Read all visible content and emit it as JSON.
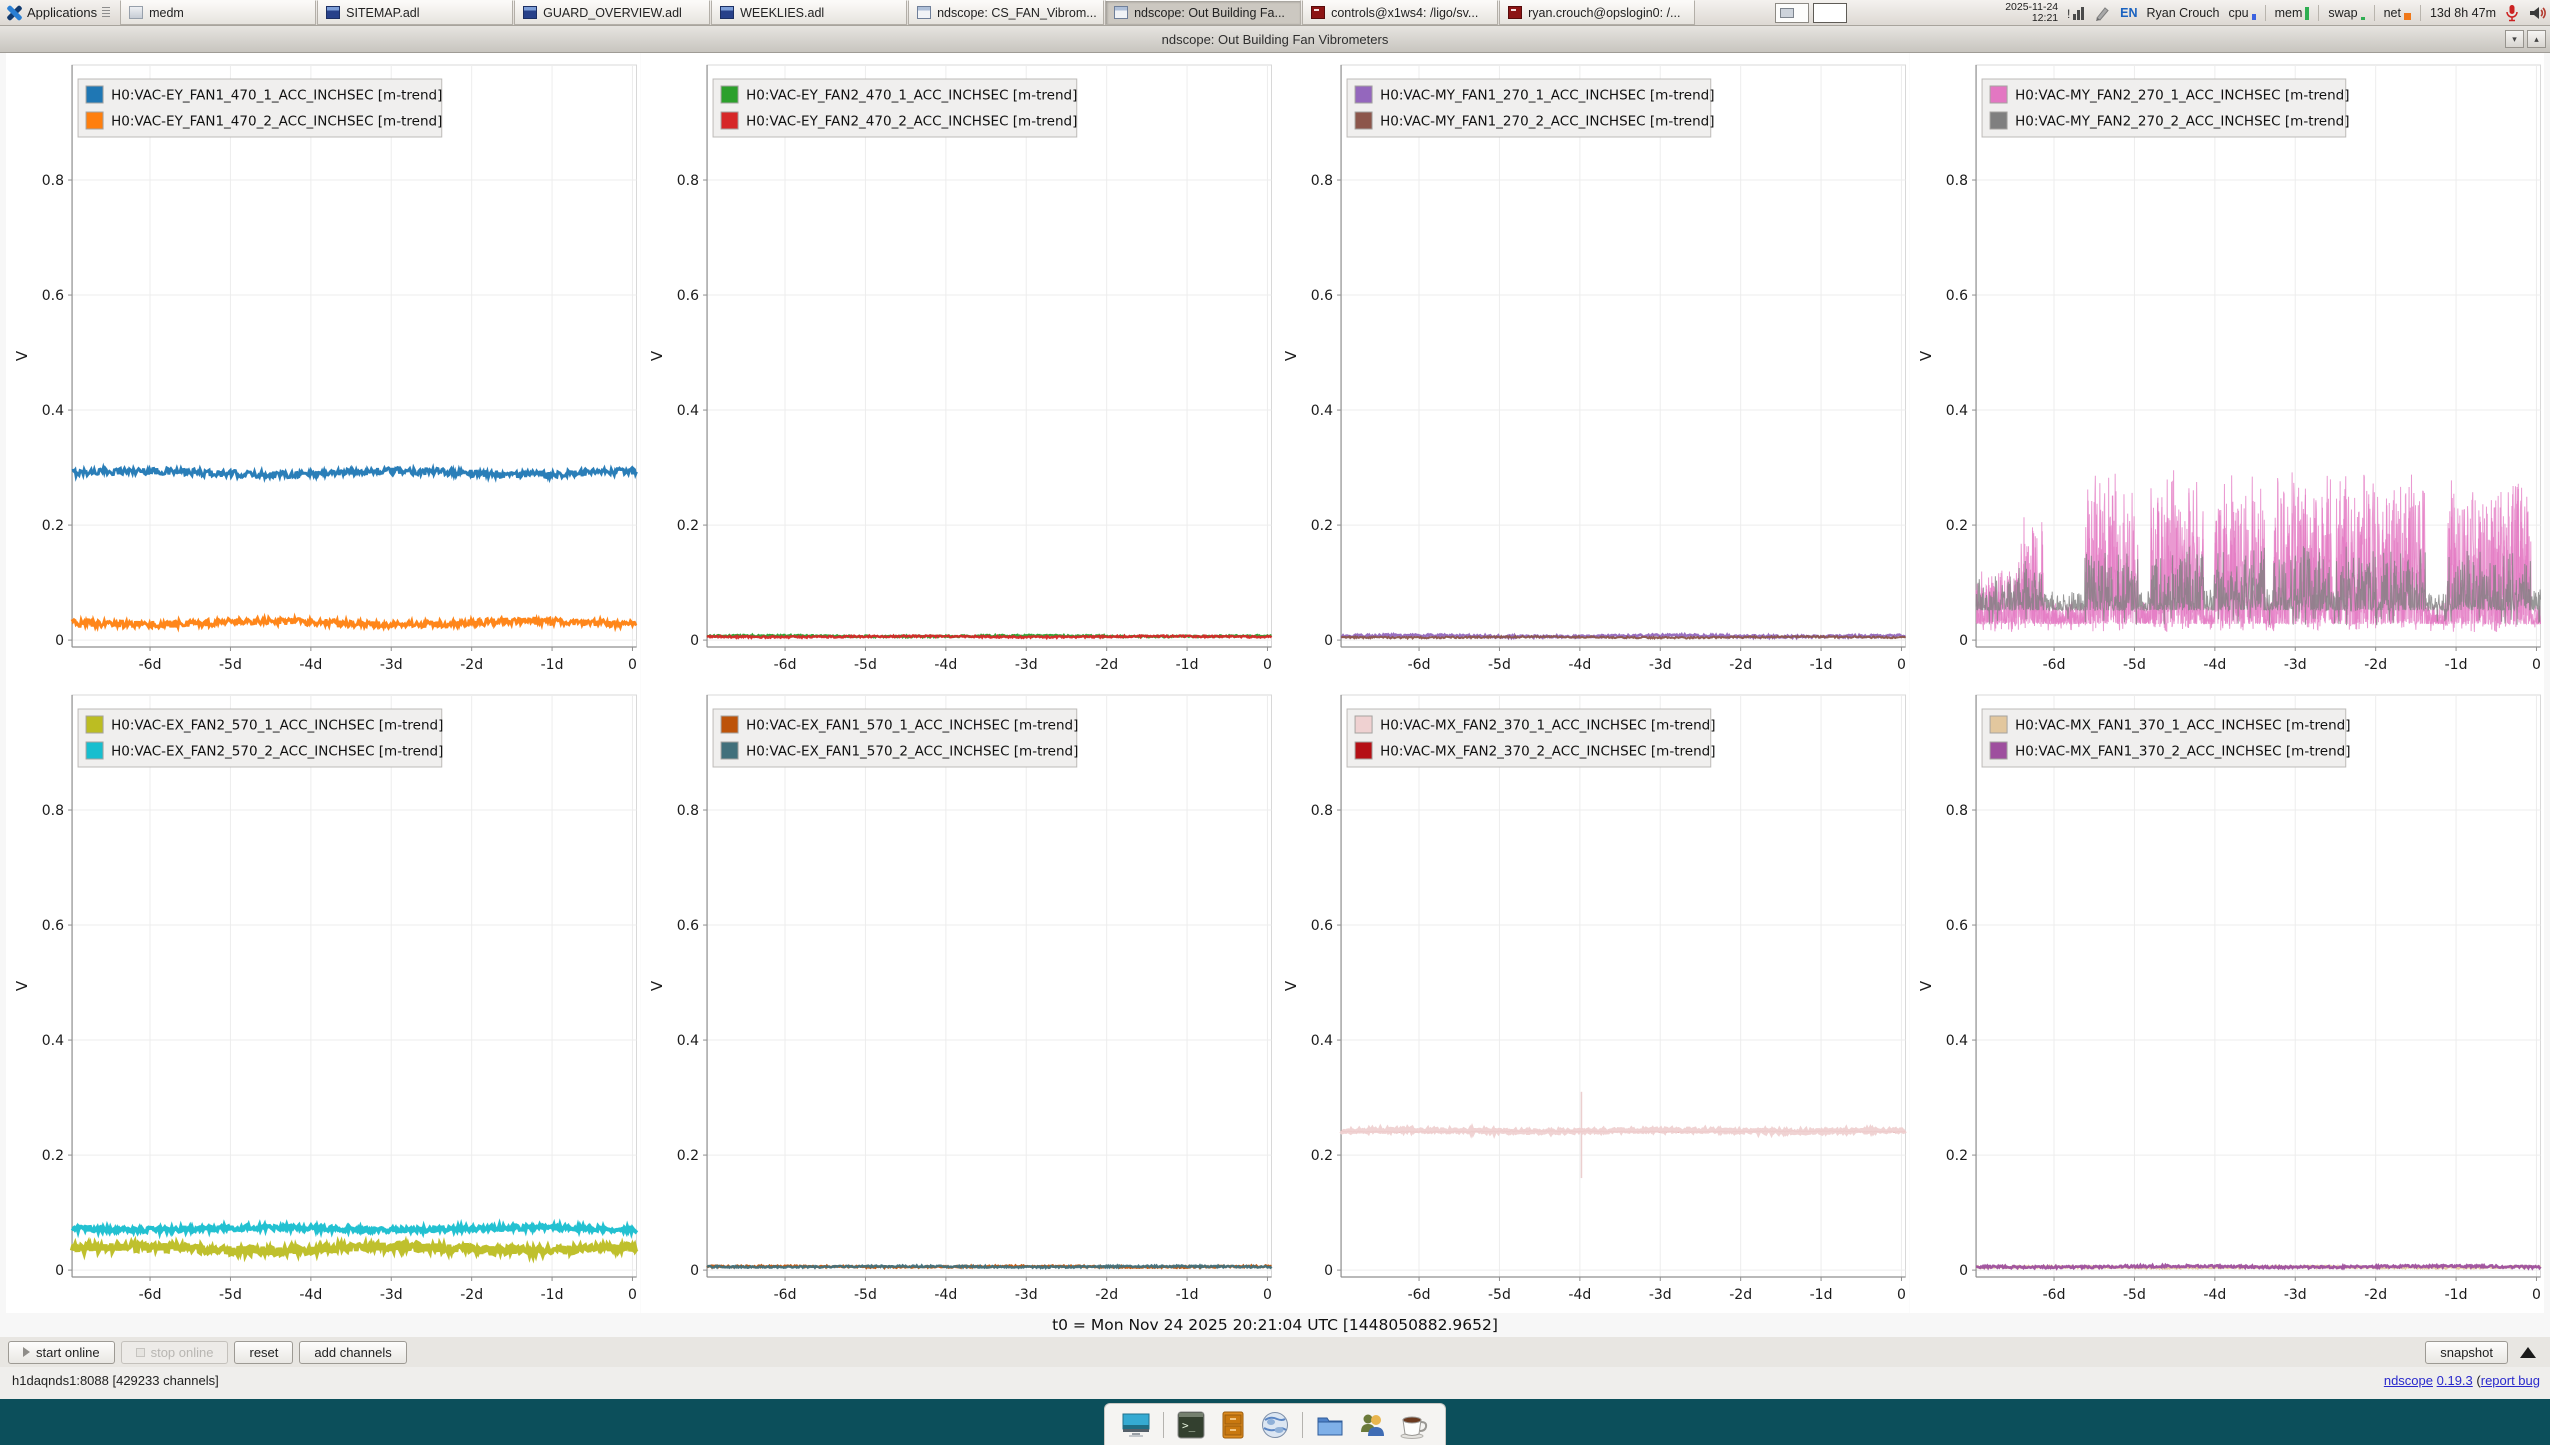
{
  "taskbar": {
    "applications_label": "Applications",
    "windows": [
      {
        "label": "medm",
        "icon": "medm",
        "active": false
      },
      {
        "label": "SITEMAP.adl",
        "icon": "adl",
        "active": false
      },
      {
        "label": "GUARD_OVERVIEW.adl",
        "icon": "adl",
        "active": false
      },
      {
        "label": "WEEKLIES.adl",
        "icon": "adl",
        "active": false
      },
      {
        "label": "ndscope: CS_FAN_Vibrom...",
        "icon": "ndscope",
        "active": false
      },
      {
        "label": "ndscope: Out Building Fa...",
        "icon": "ndscope",
        "active": true
      },
      {
        "label": "controls@x1ws4: /ligo/sv...",
        "icon": "terminal",
        "active": false
      },
      {
        "label": "ryan.crouch@opslogin0: /...",
        "icon": "terminal",
        "active": false
      }
    ],
    "tray": {
      "date": "2025-11-24",
      "time": "12:21",
      "lang": "EN",
      "user": "Ryan Crouch",
      "cpu_label": "cpu",
      "mem_label": "mem",
      "swap_label": "swap",
      "net_label": "net",
      "uptime": "13d 8h 47m"
    }
  },
  "window": {
    "title": "ndscope: Out Building Fan Vibrometers"
  },
  "footer": {
    "t0_label": "t0 = Mon Nov 24 2025 20:21:04 UTC [1448050882.9652]",
    "buttons": {
      "start_online": "start online",
      "stop_online": "stop online",
      "reset": "reset",
      "add_channels": "add channels",
      "snapshot": "snapshot"
    },
    "status": "h1daqnds1:8088  [429233 channels]",
    "about": {
      "app": "ndscope",
      "version": "0.19.3",
      "pre": " (",
      "report": "report bug"
    }
  },
  "colors": {
    "cpu_bar": "#3b62e0",
    "mem_bar": "#2fae52",
    "swap_bar": "#2fae52",
    "net_block": "#f07818",
    "mic": "#cc2222",
    "dock_background": "#0c4f5b"
  },
  "chart_data": [
    {
      "id": "EY_FAN1_470",
      "type": "line",
      "ylabel": "V",
      "xlim": [
        -6.97,
        0.05
      ],
      "ylim": [
        -0.012,
        1.0
      ],
      "yticks": [
        0,
        0.2,
        0.4,
        0.6,
        0.8
      ],
      "xticks": [
        {
          "v": -6,
          "label": "-6d"
        },
        {
          "v": -5,
          "label": "-5d"
        },
        {
          "v": -4,
          "label": "-4d"
        },
        {
          "v": -3,
          "label": "-3d"
        },
        {
          "v": -2,
          "label": "-2d"
        },
        {
          "v": -1,
          "label": "-1d"
        },
        {
          "v": 0,
          "label": "0"
        }
      ],
      "series": [
        {
          "name": "H0:VAC-EY_FAN1_470_1_ACC_INCHSEC [m-trend]",
          "color": "#1f77b4",
          "pattern": "flat",
          "level": 0.291,
          "noise": 0.006,
          "width": 3
        },
        {
          "name": "H0:VAC-EY_FAN1_470_2_ACC_INCHSEC [m-trend]",
          "color": "#ff7f0e",
          "pattern": "flat",
          "level": 0.03,
          "noise": 0.006,
          "width": 3
        }
      ]
    },
    {
      "id": "EY_FAN2_470",
      "type": "line",
      "ylabel": "V",
      "xlim": [
        -6.97,
        0.05
      ],
      "ylim": [
        -0.012,
        1.0
      ],
      "yticks": [
        0,
        0.2,
        0.4,
        0.6,
        0.8
      ],
      "xticks": [
        {
          "v": -6,
          "label": "-6d"
        },
        {
          "v": -5,
          "label": "-5d"
        },
        {
          "v": -4,
          "label": "-4d"
        },
        {
          "v": -3,
          "label": "-3d"
        },
        {
          "v": -2,
          "label": "-2d"
        },
        {
          "v": -1,
          "label": "-1d"
        },
        {
          "v": 0,
          "label": "0"
        }
      ],
      "series": [
        {
          "name": "H0:VAC-EY_FAN2_470_1_ACC_INCHSEC [m-trend]",
          "color": "#2ca02c",
          "pattern": "flat",
          "level": 0.007,
          "noise": 0.0015,
          "width": 2.4
        },
        {
          "name": "H0:VAC-EY_FAN2_470_2_ACC_INCHSEC [m-trend]",
          "color": "#d62728",
          "pattern": "flat",
          "level": 0.006,
          "noise": 0.0015,
          "width": 2.4
        }
      ]
    },
    {
      "id": "MY_FAN1_270",
      "type": "line",
      "ylabel": "V",
      "xlim": [
        -6.97,
        0.05
      ],
      "ylim": [
        -0.012,
        1.0
      ],
      "yticks": [
        0,
        0.2,
        0.4,
        0.6,
        0.8
      ],
      "xticks": [
        {
          "v": -6,
          "label": "-6d"
        },
        {
          "v": -5,
          "label": "-5d"
        },
        {
          "v": -4,
          "label": "-4d"
        },
        {
          "v": -3,
          "label": "-3d"
        },
        {
          "v": -2,
          "label": "-2d"
        },
        {
          "v": -1,
          "label": "-1d"
        },
        {
          "v": 0,
          "label": "0"
        }
      ],
      "series": [
        {
          "name": "H0:VAC-MY_FAN1_270_1_ACC_INCHSEC [m-trend]",
          "color": "#9467bd",
          "pattern": "flat",
          "level": 0.007,
          "noise": 0.002,
          "width": 2.6
        },
        {
          "name": "H0:VAC-MY_FAN1_270_2_ACC_INCHSEC [m-trend]",
          "color": "#8c564b",
          "pattern": "flat",
          "level": 0.005,
          "noise": 0.0015,
          "width": 2
        }
      ]
    },
    {
      "id": "MY_FAN2_270",
      "type": "line",
      "ylabel": "V",
      "xlim": [
        -6.97,
        0.05
      ],
      "ylim": [
        -0.012,
        1.0
      ],
      "yticks": [
        0,
        0.2,
        0.4,
        0.6,
        0.8
      ],
      "xticks": [
        {
          "v": -6,
          "label": "-6d"
        },
        {
          "v": -5,
          "label": "-5d"
        },
        {
          "v": -4,
          "label": "-4d"
        },
        {
          "v": -3,
          "label": "-3d"
        },
        {
          "v": -2,
          "label": "-2d"
        },
        {
          "v": -1,
          "label": "-1d"
        },
        {
          "v": 0,
          "label": "0"
        }
      ],
      "series": [
        {
          "name": "H0:VAC-MY_FAN2_270_1_ACC_INCHSEC [m-trend]",
          "color": "#e377c2",
          "pattern": "bursts",
          "base": 0.028,
          "pow": 2.1,
          "passes": 2,
          "width": 1,
          "opacity": 0.75,
          "segments": [
            [
              -7.0,
              -6.45,
              0.13
            ],
            [
              -6.45,
              -6.13,
              0.23
            ],
            [
              -6.13,
              -5.62,
              0.07
            ],
            [
              -5.62,
              -4.95,
              0.3
            ],
            [
              -4.95,
              -4.8,
              0.07
            ],
            [
              -4.8,
              -4.14,
              0.3
            ],
            [
              -4.14,
              -4.01,
              0.07
            ],
            [
              -4.01,
              -3.37,
              0.3
            ],
            [
              -3.37,
              -3.27,
              0.08
            ],
            [
              -3.27,
              -2.54,
              0.3
            ],
            [
              -2.54,
              -2.49,
              0.1
            ],
            [
              -2.49,
              -1.38,
              0.3
            ],
            [
              -1.38,
              -1.11,
              0.07
            ],
            [
              -1.11,
              -0.07,
              0.3
            ],
            [
              -0.07,
              0.05,
              0.07
            ]
          ]
        },
        {
          "name": "H0:VAC-MY_FAN2_270_2_ACC_INCHSEC [m-trend]",
          "color": "#7f7f7f",
          "pattern": "bursts",
          "base": 0.052,
          "pow": 2.6,
          "passes": 1,
          "width": 1,
          "opacity": 0.8,
          "segments": [
            [
              -7.0,
              -6.45,
              0.12
            ],
            [
              -6.45,
              -6.13,
              0.14
            ],
            [
              -6.13,
              -5.62,
              0.09
            ],
            [
              -5.62,
              -4.95,
              0.17
            ],
            [
              -4.95,
              -4.8,
              0.09
            ],
            [
              -4.8,
              -4.14,
              0.17
            ],
            [
              -4.14,
              -4.01,
              0.09
            ],
            [
              -4.01,
              -3.37,
              0.17
            ],
            [
              -3.37,
              -3.27,
              0.09
            ],
            [
              -3.27,
              -2.54,
              0.17
            ],
            [
              -2.54,
              -2.49,
              0.1
            ],
            [
              -2.49,
              -1.38,
              0.17
            ],
            [
              -1.38,
              -1.11,
              0.09
            ],
            [
              -1.11,
              -0.07,
              0.17
            ],
            [
              -0.07,
              0.05,
              0.09
            ]
          ]
        }
      ]
    },
    {
      "id": "EX_FAN2_570",
      "type": "line",
      "ylabel": "V",
      "xlim": [
        -6.97,
        0.05
      ],
      "ylim": [
        -0.012,
        1.0
      ],
      "yticks": [
        0,
        0.2,
        0.4,
        0.6,
        0.8
      ],
      "xticks": [
        {
          "v": -6,
          "label": "-6d"
        },
        {
          "v": -5,
          "label": "-5d"
        },
        {
          "v": -4,
          "label": "-4d"
        },
        {
          "v": -3,
          "label": "-3d"
        },
        {
          "v": -2,
          "label": "-2d"
        },
        {
          "v": -1,
          "label": "-1d"
        },
        {
          "v": 0,
          "label": "0"
        }
      ],
      "series": [
        {
          "name": "H0:VAC-EX_FAN2_570_1_ACC_INCHSEC [m-trend]",
          "color": "#bcbd22",
          "pattern": "flat",
          "level": 0.037,
          "noise": 0.007,
          "width": 4.5
        },
        {
          "name": "H0:VAC-EX_FAN2_570_2_ACC_INCHSEC [m-trend]",
          "color": "#17becf",
          "pattern": "flat",
          "level": 0.072,
          "noise": 0.004,
          "width": 4
        }
      ]
    },
    {
      "id": "EX_FAN1_570",
      "type": "line",
      "ylabel": "V",
      "xlim": [
        -6.97,
        0.05
      ],
      "ylim": [
        -0.012,
        1.0
      ],
      "yticks": [
        0,
        0.2,
        0.4,
        0.6,
        0.8
      ],
      "xticks": [
        {
          "v": -6,
          "label": "-6d"
        },
        {
          "v": -5,
          "label": "-5d"
        },
        {
          "v": -4,
          "label": "-4d"
        },
        {
          "v": -3,
          "label": "-3d"
        },
        {
          "v": -2,
          "label": "-2d"
        },
        {
          "v": -1,
          "label": "-1d"
        },
        {
          "v": 0,
          "label": "0"
        }
      ],
      "series": [
        {
          "name": "H0:VAC-EX_FAN1_570_1_ACC_INCHSEC [m-trend]",
          "color": "#bd5309",
          "pattern": "flat",
          "level": 0.006,
          "noise": 0.0015,
          "width": 2.4
        },
        {
          "name": "H0:VAC-EX_FAN1_570_2_ACC_INCHSEC [m-trend]",
          "color": "#41707b",
          "pattern": "flat",
          "level": 0.006,
          "noise": 0.0015,
          "width": 2.4
        }
      ]
    },
    {
      "id": "MX_FAN2_370",
      "type": "line",
      "ylabel": "V",
      "xlim": [
        -6.97,
        0.05
      ],
      "ylim": [
        -0.012,
        1.0
      ],
      "yticks": [
        0,
        0.2,
        0.4,
        0.6,
        0.8
      ],
      "xticks": [
        {
          "v": -6,
          "label": "-6d"
        },
        {
          "v": -5,
          "label": "-5d"
        },
        {
          "v": -4,
          "label": "-4d"
        },
        {
          "v": -3,
          "label": "-3d"
        },
        {
          "v": -2,
          "label": "-2d"
        },
        {
          "v": -1,
          "label": "-1d"
        },
        {
          "v": 0,
          "label": "0"
        }
      ],
      "annotations": [
        {
          "type": "vline",
          "x": -3.98,
          "y0": 0.16,
          "y1": 0.31,
          "color": "#eccfcf"
        }
      ],
      "series": [
        {
          "name": "H0:VAC-MX_FAN2_370_1_ACC_INCHSEC [m-trend]",
          "color": "#efd1d1",
          "pattern": "flat",
          "level": 0.242,
          "noise": 0.0025,
          "width": 4.5
        },
        {
          "name": "H0:VAC-MX_FAN2_370_2_ACC_INCHSEC [m-trend]",
          "color": "#b50f15",
          "pattern": "flat",
          "level": 0.241,
          "noise": 0.001,
          "width": 1.2,
          "opacity": 0.6,
          "behind": true
        }
      ]
    },
    {
      "id": "MX_FAN1_370",
      "type": "line",
      "ylabel": "V",
      "xlim": [
        -6.97,
        0.05
      ],
      "ylim": [
        -0.012,
        1.0
      ],
      "yticks": [
        0,
        0.2,
        0.4,
        0.6,
        0.8
      ],
      "xticks": [
        {
          "v": -6,
          "label": "-6d"
        },
        {
          "v": -5,
          "label": "-5d"
        },
        {
          "v": -4,
          "label": "-4d"
        },
        {
          "v": -3,
          "label": "-3d"
        },
        {
          "v": -2,
          "label": "-2d"
        },
        {
          "v": -1,
          "label": "-1d"
        },
        {
          "v": 0,
          "label": "0"
        }
      ],
      "series": [
        {
          "name": "H0:VAC-MX_FAN1_370_1_ACC_INCHSEC [m-trend]",
          "color": "#e2c79e",
          "pattern": "flat",
          "level": 0.005,
          "noise": 0.0015,
          "width": 2.4
        },
        {
          "name": "H0:VAC-MX_FAN1_370_2_ACC_INCHSEC [m-trend]",
          "color": "#9e4f9e",
          "pattern": "flat",
          "level": 0.006,
          "noise": 0.002,
          "width": 2.6
        }
      ]
    }
  ]
}
